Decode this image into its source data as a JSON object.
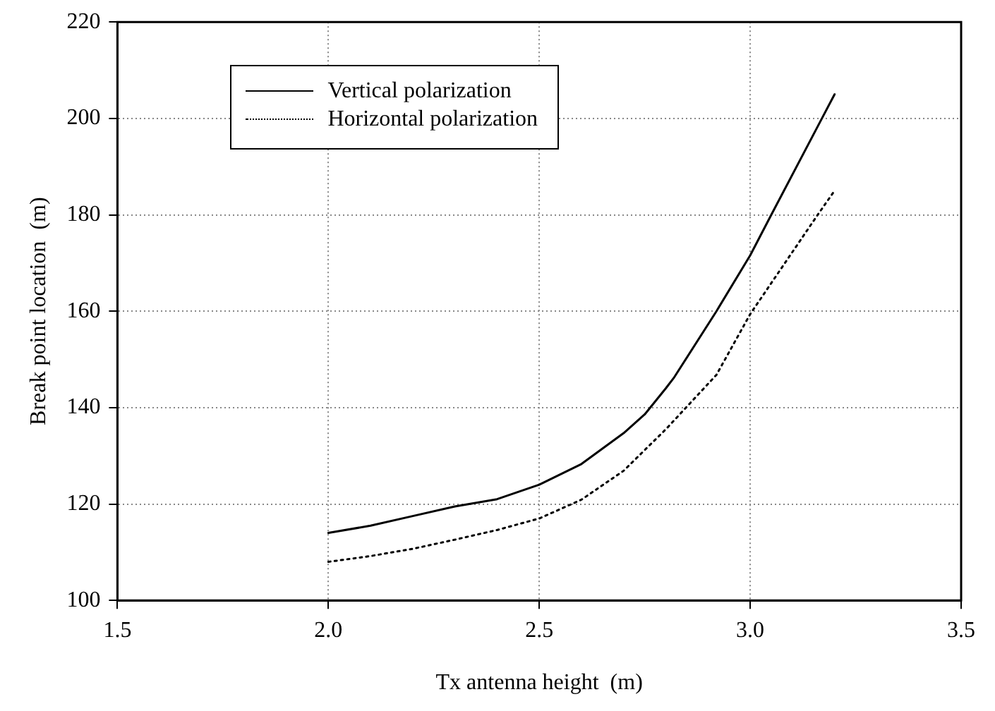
{
  "chart_data": {
    "type": "line",
    "xlabel": "Tx antenna height  (m)",
    "ylabel": "Break point location  (m)",
    "xlim": [
      1.5,
      3.5
    ],
    "xticks": [
      {
        "value": 1.5,
        "label": "1.5"
      },
      {
        "value": 2,
        "label": "2.0"
      },
      {
        "value": 2.5,
        "label": "2.5"
      },
      {
        "value": 3,
        "label": "3.0"
      },
      {
        "value": 3.5,
        "label": "3.5"
      }
    ],
    "ylim": [
      100,
      220
    ],
    "yticks": [
      100,
      120,
      140,
      160,
      180,
      200,
      220
    ],
    "grid": true,
    "legend": "top left",
    "marker": "none",
    "series": [
      {
        "name": "Vertical polarization",
        "color": "#000000",
        "line_style": "solid",
        "x": [
          2.0,
          2.1,
          2.2,
          2.3,
          2.4,
          2.5,
          2.6,
          2.7,
          2.75,
          2.8,
          2.82,
          2.92,
          3.0,
          3.05,
          3.17,
          3.2
        ],
        "values": [
          114,
          115.5,
          117.5,
          119.5,
          121,
          124,
          128.3,
          134.7,
          138.6,
          144,
          146.3,
          160,
          171.6,
          180,
          200,
          205
        ]
      },
      {
        "name": "Horizontal polarization",
        "color": "#000000",
        "line_style": "dotted",
        "x": [
          2.0,
          2.1,
          2.2,
          2.3,
          2.4,
          2.5,
          2.6,
          2.7,
          2.8,
          2.92,
          3.0,
          3.16,
          3.2
        ],
        "values": [
          108,
          109.2,
          110.7,
          112.6,
          114.6,
          117,
          120.9,
          126.9,
          135.5,
          146.8,
          159.4,
          180,
          185
        ]
      }
    ]
  }
}
